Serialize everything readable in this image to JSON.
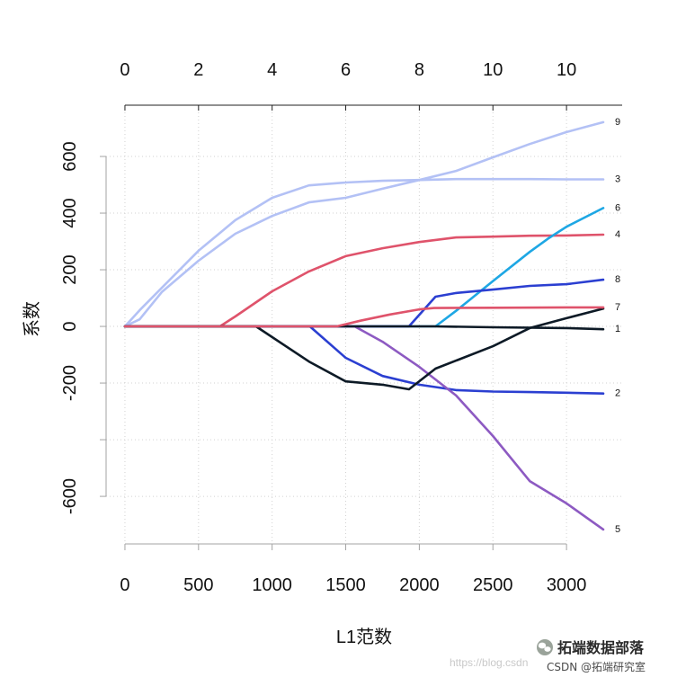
{
  "chart_data": {
    "type": "line",
    "title": "",
    "xlabel": "L1范数",
    "ylabel": "系数",
    "xlim": [
      -128,
      3378
    ],
    "ylim": [
      -768,
      781
    ],
    "grid": true,
    "x_ticks": [
      0,
      500,
      1000,
      1500,
      2000,
      2500,
      3000
    ],
    "x_tick_labels": [
      "0",
      "500",
      "1000",
      "1500",
      "2000",
      "2500",
      "3000"
    ],
    "y_ticks": [
      600,
      400,
      200,
      0,
      -200,
      -400,
      -600
    ],
    "y_tick_labels": [
      "600",
      "400",
      "200",
      "0",
      "-200",
      "",
      "-600"
    ],
    "top_axis": {
      "ticks": [
        0,
        500,
        1000,
        1500,
        2000,
        2500,
        3000
      ],
      "labels": [
        "0",
        "2",
        "4",
        "6",
        "8",
        "10",
        "10"
      ]
    },
    "series": [
      {
        "name": "3",
        "color": "#b3c1f5",
        "points": [
          [
            0,
            0
          ],
          [
            100,
            57
          ],
          [
            250,
            136
          ],
          [
            500,
            267
          ],
          [
            750,
            375
          ],
          [
            1000,
            454
          ],
          [
            1250,
            498
          ],
          [
            1500,
            508
          ],
          [
            1750,
            514
          ],
          [
            2000,
            517
          ],
          [
            2250,
            520
          ],
          [
            2500,
            520
          ],
          [
            2750,
            520
          ],
          [
            3000,
            519
          ],
          [
            3250,
            519
          ]
        ]
      },
      {
        "name": "9",
        "color": "#b3c1f5",
        "points": [
          [
            0,
            0
          ],
          [
            100,
            25
          ],
          [
            250,
            121
          ],
          [
            500,
            232
          ],
          [
            750,
            327
          ],
          [
            1000,
            390
          ],
          [
            1250,
            438
          ],
          [
            1500,
            454
          ],
          [
            1750,
            486
          ],
          [
            2000,
            517
          ],
          [
            2250,
            549
          ],
          [
            2500,
            597
          ],
          [
            2750,
            644
          ],
          [
            3000,
            686
          ],
          [
            3250,
            721
          ]
        ]
      },
      {
        "name": "4",
        "color": "#df536b",
        "points": [
          [
            0,
            0
          ],
          [
            646,
            0
          ],
          [
            750,
            35
          ],
          [
            1000,
            124
          ],
          [
            1250,
            194
          ],
          [
            1500,
            248
          ],
          [
            1750,
            276
          ],
          [
            2000,
            298
          ],
          [
            2250,
            314
          ],
          [
            2500,
            317
          ],
          [
            2750,
            320
          ],
          [
            3000,
            321
          ],
          [
            3250,
            324
          ]
        ]
      },
      {
        "name": "6",
        "color": "#1ea7e4",
        "points": [
          [
            0,
            0
          ],
          [
            2110,
            0
          ],
          [
            2250,
            55
          ],
          [
            2500,
            160
          ],
          [
            2750,
            263
          ],
          [
            2875,
            310
          ],
          [
            3000,
            352
          ],
          [
            3250,
            418
          ]
        ]
      },
      {
        "name": "8",
        "color": "#2b3fd1",
        "points": [
          [
            0,
            0
          ],
          [
            1930,
            0
          ],
          [
            2110,
            105
          ],
          [
            2250,
            118
          ],
          [
            2500,
            130
          ],
          [
            2750,
            143
          ],
          [
            3000,
            149
          ],
          [
            3250,
            165
          ]
        ]
      },
      {
        "name": "2",
        "color": "#2b3fd1",
        "points": [
          [
            0,
            0
          ],
          [
            1256,
            0
          ],
          [
            1500,
            -111
          ],
          [
            1750,
            -175
          ],
          [
            2000,
            -206
          ],
          [
            2250,
            -225
          ],
          [
            2500,
            -230
          ],
          [
            2750,
            -232
          ],
          [
            3000,
            -234
          ],
          [
            3250,
            -237
          ]
        ]
      },
      {
        "name": "5",
        "color": "#8d5ac2",
        "points": [
          [
            0,
            0
          ],
          [
            1560,
            0
          ],
          [
            1750,
            -54
          ],
          [
            2000,
            -143
          ],
          [
            2250,
            -244
          ],
          [
            2500,
            -387
          ],
          [
            2750,
            -546
          ],
          [
            3000,
            -625
          ],
          [
            3250,
            -717
          ]
        ]
      },
      {
        "color": "#0d1a26",
        "points": [
          [
            0,
            0
          ],
          [
            890,
            0
          ],
          [
            1250,
            -124
          ],
          [
            1500,
            -194
          ],
          [
            1750,
            -206
          ],
          [
            1930,
            -222
          ],
          [
            2110,
            -149
          ],
          [
            2500,
            -70
          ],
          [
            2750,
            -6
          ],
          [
            3000,
            29
          ],
          [
            3250,
            63
          ]
        ]
      },
      {
        "name": "1",
        "color": "#0d1a26",
        "points": [
          [
            0,
            0
          ],
          [
            2100,
            0
          ],
          [
            2500,
            -3
          ],
          [
            3000,
            -6
          ],
          [
            3250,
            -10
          ]
        ]
      },
      {
        "name": "7",
        "color": "#df536b",
        "points": [
          [
            0,
            0
          ],
          [
            1440,
            0
          ],
          [
            1600,
            20
          ],
          [
            1800,
            42
          ],
          [
            2000,
            60
          ],
          [
            2100,
            65
          ],
          [
            2500,
            66
          ],
          [
            3000,
            67
          ],
          [
            3250,
            67
          ]
        ]
      }
    ]
  },
  "watermark": {
    "icon": "wechat-icon",
    "account_name": "拓端数据部落",
    "url_fragment": "https://blog.csdn",
    "csdn_credit": "CSDN @拓端研究室"
  }
}
